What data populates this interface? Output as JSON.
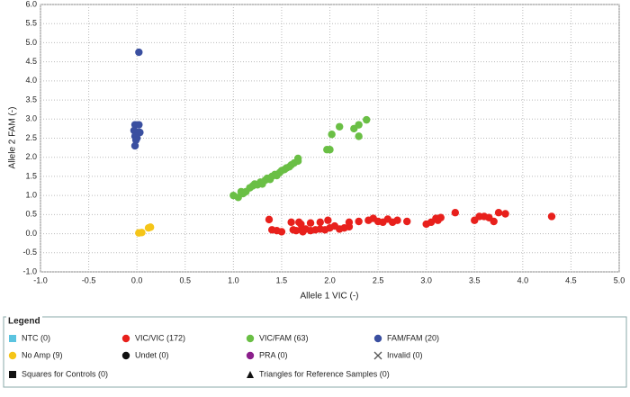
{
  "chart_data": {
    "type": "scatter",
    "x_label": "Allele 1 VIC (-)",
    "y_label": "Allele 2 FAM (-)",
    "xlim": [
      -1,
      5
    ],
    "ylim": [
      -1,
      6
    ],
    "grid": true,
    "xticks": [
      {
        "value": -1,
        "label": "-1.0"
      },
      {
        "value": -0.5,
        "label": "-0.5"
      },
      {
        "value": 0,
        "label": "0.0"
      },
      {
        "value": 0.5,
        "label": "0.5"
      },
      {
        "value": 1,
        "label": "1.0"
      },
      {
        "value": 1.5,
        "label": "1.5"
      },
      {
        "value": 2,
        "label": "2.0"
      },
      {
        "value": 2.5,
        "label": "2.5"
      },
      {
        "value": 3,
        "label": "3.0"
      },
      {
        "value": 3.5,
        "label": "3.5"
      },
      {
        "value": 4,
        "label": "4.0"
      },
      {
        "value": 4.5,
        "label": "4.5"
      },
      {
        "value": 5,
        "label": "5.0"
      }
    ],
    "yticks": [
      {
        "value": -1,
        "label": "-1.0"
      },
      {
        "value": -0.5,
        "label": "-0.5"
      },
      {
        "value": 0,
        "label": "0.0"
      },
      {
        "value": 0.5,
        "label": "0.5"
      },
      {
        "value": 1,
        "label": "1.0"
      },
      {
        "value": 1.5,
        "label": "1.5"
      },
      {
        "value": 2,
        "label": "2.0"
      },
      {
        "value": 2.5,
        "label": "2.5"
      },
      {
        "value": 3,
        "label": "3.0"
      },
      {
        "value": 3.5,
        "label": "3.5"
      },
      {
        "value": 4,
        "label": "4.0"
      },
      {
        "value": 4.5,
        "label": "4.5"
      },
      {
        "value": 5,
        "label": "5.0"
      },
      {
        "value": 5.5,
        "label": "5.5"
      },
      {
        "value": 6,
        "label": "6.0"
      }
    ],
    "legend_title": "Legend",
    "series": [
      {
        "name": "NTC (0)",
        "color": "#5bc4e0",
        "marker": "square",
        "x": [],
        "values": []
      },
      {
        "name": "VIC/VIC (172)",
        "color": "#e8201c",
        "marker": "circle",
        "x": [
          1.37,
          1.4,
          1.45,
          1.5,
          1.6,
          1.62,
          1.65,
          1.7,
          1.72,
          1.75,
          1.8,
          1.85,
          1.9,
          1.95,
          2.0,
          2.05,
          2.1,
          2.15,
          2.2,
          1.68,
          1.7,
          1.8,
          1.9,
          1.98,
          2.2,
          2.3,
          2.4,
          2.45,
          2.5,
          2.55,
          2.6,
          2.65,
          2.7,
          2.8,
          3.0,
          3.05,
          3.1,
          3.12,
          3.15,
          3.3,
          3.5,
          3.55,
          3.6,
          3.65,
          3.7,
          3.75,
          3.82,
          4.3
        ],
        "values": [
          0.37,
          0.1,
          0.08,
          0.05,
          0.3,
          0.1,
          0.08,
          0.1,
          0.05,
          0.12,
          0.08,
          0.1,
          0.12,
          0.1,
          0.15,
          0.2,
          0.12,
          0.15,
          0.18,
          0.3,
          0.25,
          0.28,
          0.3,
          0.35,
          0.3,
          0.32,
          0.35,
          0.4,
          0.32,
          0.3,
          0.38,
          0.3,
          0.35,
          0.32,
          0.25,
          0.3,
          0.4,
          0.35,
          0.42,
          0.55,
          0.35,
          0.45,
          0.45,
          0.42,
          0.32,
          0.55,
          0.52,
          0.45
        ]
      },
      {
        "name": "VIC/FAM (63)",
        "color": "#6abf45",
        "marker": "circle",
        "x": [
          1.0,
          1.05,
          1.08,
          1.1,
          1.13,
          1.17,
          1.2,
          1.22,
          1.25,
          1.28,
          1.3,
          1.33,
          1.35,
          1.38,
          1.4,
          1.43,
          1.45,
          1.48,
          1.5,
          1.53,
          1.55,
          1.58,
          1.6,
          1.63,
          1.67,
          1.67,
          1.97,
          2.0,
          2.02,
          2.1,
          2.25,
          2.3,
          2.3,
          2.38
        ],
        "values": [
          1.0,
          0.95,
          1.1,
          1.05,
          1.1,
          1.2,
          1.25,
          1.3,
          1.28,
          1.35,
          1.3,
          1.4,
          1.45,
          1.42,
          1.5,
          1.55,
          1.52,
          1.6,
          1.65,
          1.68,
          1.72,
          1.75,
          1.8,
          1.85,
          1.9,
          1.97,
          2.2,
          2.2,
          2.6,
          2.8,
          2.75,
          2.85,
          2.55,
          2.98
        ]
      },
      {
        "name": "FAM/FAM (20)",
        "color": "#3a4fa0",
        "marker": "circle",
        "x": [
          0.02,
          -0.02,
          0.02,
          -0.03,
          0.0,
          0.03,
          -0.02,
          0.0,
          -0.01,
          -0.02
        ],
        "values": [
          4.75,
          2.85,
          2.85,
          2.7,
          2.65,
          2.65,
          2.55,
          2.5,
          2.45,
          2.3
        ]
      },
      {
        "name": "No Amp (9)",
        "color": "#f5c518",
        "marker": "circle",
        "x": [
          0.02,
          0.05,
          0.12,
          0.14
        ],
        "values": [
          0.02,
          0.03,
          0.15,
          0.17
        ]
      },
      {
        "name": "Undet (0)",
        "color": "#111111",
        "marker": "circle",
        "x": [],
        "values": []
      },
      {
        "name": "PRA (0)",
        "color": "#8b1f8b",
        "marker": "circle",
        "x": [],
        "values": []
      },
      {
        "name": "Invalid (0)",
        "color": "#555555",
        "marker": "x",
        "x": [],
        "values": []
      }
    ],
    "legend_notes": [
      {
        "label": "Squares for Controls (0)",
        "marker": "square"
      },
      {
        "label": "Triangles for Reference Samples (0)",
        "marker": "triangle"
      }
    ]
  }
}
